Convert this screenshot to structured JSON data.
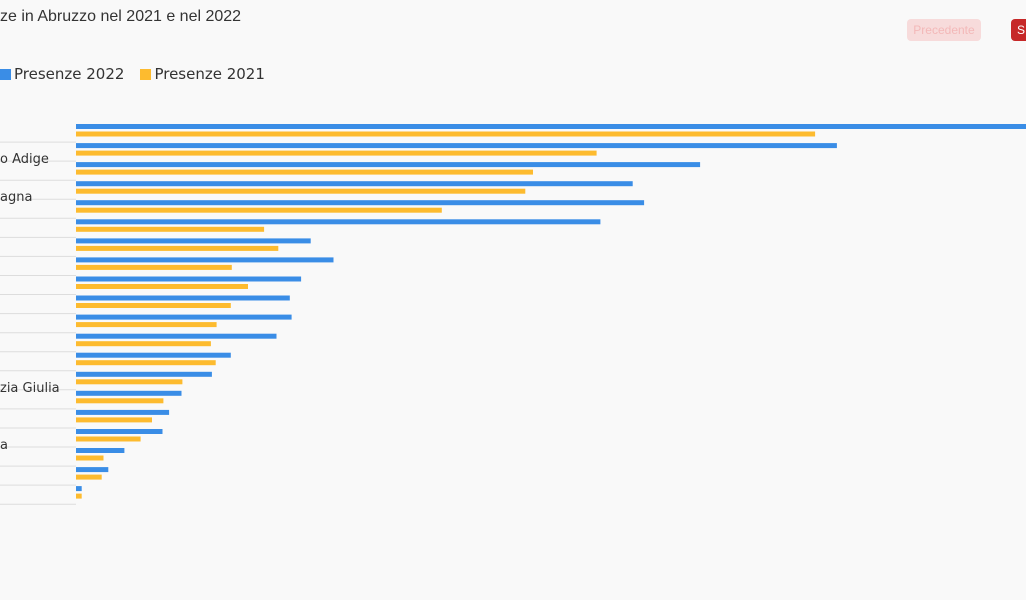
{
  "title": "ze in Abruzzo nel 2021 e nel 2022",
  "buttons": {
    "prev_label": "Precedente",
    "next_label": "S"
  },
  "colors": {
    "series_2022": "#3a8de6",
    "series_2021": "#fdbb2f",
    "grid": "#dddddd",
    "button_active": "#c62828"
  },
  "chart_data": {
    "type": "bar",
    "orientation": "horizontal",
    "title": "ze in Abruzzo nel 2021 e nel 2022",
    "legend_position": "top-left",
    "categories": [
      "",
      "o Adige",
      "",
      "agna",
      "",
      "",
      "",
      "",
      "",
      "",
      "",
      "",
      "",
      "zia Giulia",
      "",
      "",
      "a",
      "",
      "",
      ""
    ],
    "series": [
      {
        "name": "Presenze 2022",
        "values": [
          100,
          80.1,
          65.7,
          58.6,
          59.8,
          55.2,
          24.7,
          27.1,
          23.7,
          22.5,
          22.7,
          21.1,
          16.3,
          14.3,
          11.1,
          9.8,
          9.1,
          5.1,
          3.4,
          0.6
        ]
      },
      {
        "name": "Presenze 2021",
        "values": [
          77.8,
          54.8,
          48.1,
          47.3,
          38.5,
          19.8,
          21.3,
          16.4,
          18.1,
          16.3,
          14.8,
          14.2,
          14.7,
          11.2,
          9.2,
          8.0,
          6.8,
          2.9,
          2.7,
          0.6
        ]
      }
    ],
    "xlim": [
      0,
      100
    ],
    "grid": false
  }
}
